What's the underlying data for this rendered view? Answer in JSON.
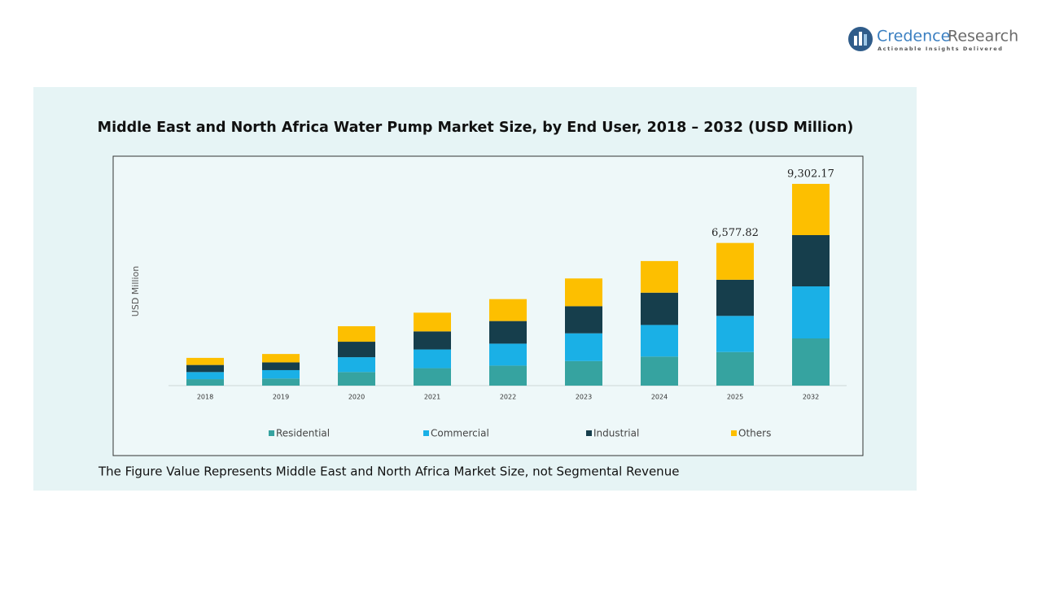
{
  "logo": {
    "name": [
      "Credence",
      "Research"
    ],
    "tagline": "Actionable Insights Delivered"
  },
  "chart_data": {
    "type": "bar",
    "stacked": true,
    "title": "Middle East and North Africa Water Pump Market Size, by End User, 2018 – 2032 (USD Million)",
    "y_label": "USD Million",
    "categories": [
      "2018",
      "2019",
      "2020",
      "2021",
      "2022",
      "2023",
      "2024",
      "2025",
      "2032"
    ],
    "series": [
      {
        "name": "Residential",
        "color": "#36a3a0",
        "values": [
          298,
          327,
          625,
          804,
          923,
          1131,
          1339,
          1547.72,
          2175.52
        ]
      },
      {
        "name": "Commercial",
        "color": "#1ab0e6",
        "values": [
          327,
          387,
          685,
          863,
          1012,
          1280,
          1458,
          1666.8,
          2400.58
        ]
      },
      {
        "name": "Industrial",
        "color": "#163e4c",
        "values": [
          327,
          357,
          714,
          833,
          1042,
          1250,
          1488,
          1666.8,
          2363.04
        ]
      },
      {
        "name": "Others",
        "color": "#fdbf00",
        "values": [
          327,
          387,
          714,
          863,
          1012,
          1280,
          1458,
          1696.5,
          2363.03
        ]
      }
    ],
    "totals": {
      "values": [
        null,
        null,
        null,
        null,
        null,
        null,
        null,
        6577.82,
        9302.17
      ],
      "value_labels": [
        null,
        null,
        null,
        null,
        null,
        null,
        null,
        "6,577.82",
        "9,302.17"
      ]
    },
    "legend": "bottom"
  },
  "footnote": "The Figure Value Represents Middle East and North Africa Market Size, not Segmental Revenue"
}
